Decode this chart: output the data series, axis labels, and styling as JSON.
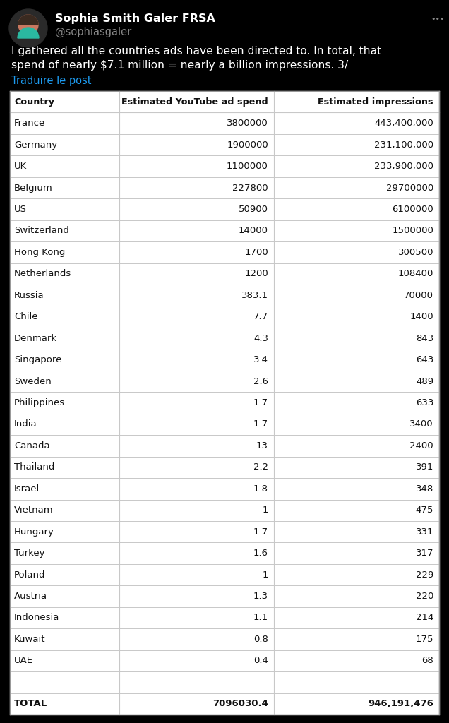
{
  "bg_color": "#000000",
  "tweet_header": {
    "name": "Sophia Smith Galer FRSA",
    "handle": "@sophiasgaler",
    "body_line1": "I gathered all the countries ads have been directed to. In total, that",
    "body_line2": "spend of nearly $7.1 million = nearly a billion impressions. 3/",
    "translate": "Traduire le post"
  },
  "table": {
    "headers": [
      "Country",
      "Estimated YouTube ad spend",
      "Estimated impressions"
    ],
    "rows": [
      [
        "France",
        "3800000",
        "443,400,000"
      ],
      [
        "Germany",
        "1900000",
        "231,100,000"
      ],
      [
        "UK",
        "1100000",
        "233,900,000"
      ],
      [
        "Belgium",
        "227800",
        "29700000"
      ],
      [
        "US",
        "50900",
        "6100000"
      ],
      [
        "Switzerland",
        "14000",
        "1500000"
      ],
      [
        "Hong Kong",
        "1700",
        "300500"
      ],
      [
        "Netherlands",
        "1200",
        "108400"
      ],
      [
        "Russia",
        "383.1",
        "70000"
      ],
      [
        "Chile",
        "7.7",
        "1400"
      ],
      [
        "Denmark",
        "4.3",
        "843"
      ],
      [
        "Singapore",
        "3.4",
        "643"
      ],
      [
        "Sweden",
        "2.6",
        "489"
      ],
      [
        "Philippines",
        "1.7",
        "633"
      ],
      [
        "India",
        "1.7",
        "3400"
      ],
      [
        "Canada",
        "13",
        "2400"
      ],
      [
        "Thailand",
        "2.2",
        "391"
      ],
      [
        "Israel",
        "1.8",
        "348"
      ],
      [
        "Vietnam",
        "1",
        "475"
      ],
      [
        "Hungary",
        "1.7",
        "331"
      ],
      [
        "Turkey",
        "1.6",
        "317"
      ],
      [
        "Poland",
        "1",
        "229"
      ],
      [
        "Austria",
        "1.3",
        "220"
      ],
      [
        "Indonesia",
        "1.1",
        "214"
      ],
      [
        "Kuwait",
        "0.8",
        "175"
      ],
      [
        "UAE",
        "0.4",
        "68"
      ]
    ],
    "total_row": [
      "TOTAL",
      "7096030.4",
      "946,191,476"
    ],
    "table_bg": "#ffffff",
    "header_text_color": "#111111",
    "row_text_color": "#111111",
    "line_color": "#c8c8c8",
    "total_text_color": "#111111",
    "border_color": "#999999"
  },
  "dots_color": "#888888",
  "handle_color": "#888888",
  "name_color": "#ffffff",
  "body_color": "#ffffff",
  "translate_color": "#1d9bf0"
}
